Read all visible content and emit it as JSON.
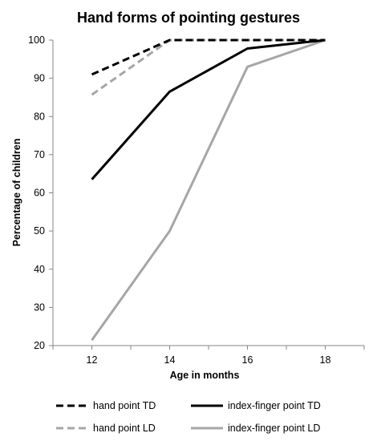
{
  "chart_data": {
    "type": "line",
    "title": "Hand forms of pointing gestures",
    "xlabel": "Age in months",
    "ylabel": "Percentage of children",
    "x": [
      12,
      14,
      16,
      18
    ],
    "xlim": [
      11,
      19
    ],
    "ylim": [
      20,
      100
    ],
    "yticks": [
      20,
      30,
      40,
      50,
      60,
      70,
      80,
      90,
      100
    ],
    "grid": false,
    "legend_position": "bottom",
    "series": [
      {
        "name": "hand point TD",
        "x": [
          12,
          14,
          16,
          18
        ],
        "values": [
          91,
          100,
          100,
          100
        ],
        "color": "#000000",
        "dash": true
      },
      {
        "name": "index-finger point TD",
        "x": [
          12,
          14,
          16,
          18
        ],
        "values": [
          63.5,
          86.5,
          97.8,
          100
        ],
        "color": "#000000",
        "dash": false
      },
      {
        "name": "hand point LD",
        "x": [
          12,
          14,
          16,
          18
        ],
        "values": [
          85.7,
          100,
          100,
          100
        ],
        "color": "#a6a6a6",
        "dash": true
      },
      {
        "name": "index-finger point LD",
        "x": [
          12,
          14,
          16,
          18
        ],
        "values": [
          21.4,
          50,
          93,
          100
        ],
        "color": "#a6a6a6",
        "dash": false
      }
    ]
  }
}
